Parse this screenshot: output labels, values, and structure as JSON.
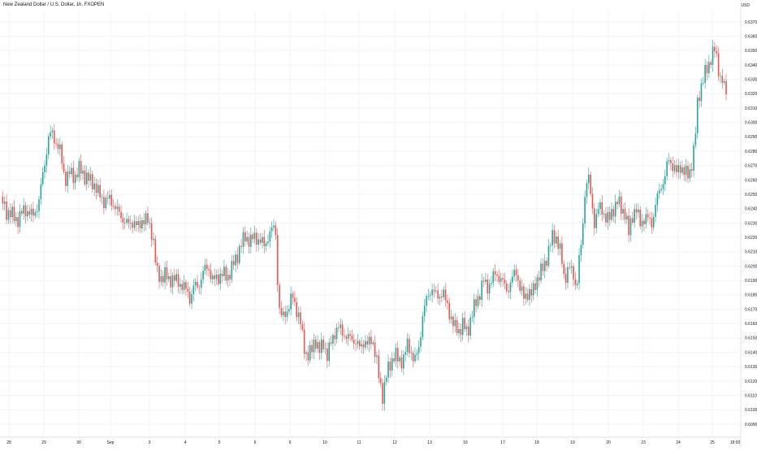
{
  "header": {
    "symbol_title": "New Zealand Dollar / U.S. Dollar, 1h, FXOPEN"
  },
  "price_axis": {
    "currency": "USD"
  },
  "colors": {
    "up": "#26a69a",
    "down": "#ef5350",
    "grid": "#f0f3fa",
    "text": "#131722",
    "axis_line": "#e0e3eb"
  },
  "chart_data": {
    "type": "candlestick",
    "title": "New Zealand Dollar / U.S. Dollar, 1h, FXOPEN",
    "currency": "USD",
    "ylim": [
      0.609,
      0.6375
    ],
    "y_ticks": [
      "0.6370",
      "0.6360",
      "0.6350",
      "0.6340",
      "0.6330",
      "0.6320",
      "0.6310",
      "0.6300",
      "0.6290",
      "0.6280",
      "0.6270",
      "0.6260",
      "0.6250",
      "0.6240",
      "0.6230",
      "0.6220",
      "0.6210",
      "0.6200",
      "0.6190",
      "0.6180",
      "0.6170",
      "0.6160",
      "0.6150",
      "0.6140",
      "0.6130",
      "0.6120",
      "0.6110",
      "0.6100",
      "0.6090"
    ],
    "x_ticks": [
      "28",
      "29",
      "30",
      "Sep",
      "3",
      "4",
      "5",
      "6",
      "9",
      "10",
      "11",
      "12",
      "13",
      "16",
      "17",
      "18",
      "19",
      "20",
      "23",
      "24",
      "25",
      "18:00"
    ],
    "grid": true,
    "series": {
      "anchors": [
        [
          0,
          0.6243
        ],
        [
          3,
          0.6245
        ],
        [
          8,
          0.6238
        ],
        [
          14,
          0.6236
        ],
        [
          22,
          0.6232
        ],
        [
          30,
          0.624
        ],
        [
          40,
          0.6235
        ],
        [
          45,
          0.624
        ],
        [
          48,
          0.6245
        ],
        [
          52,
          0.6262
        ],
        [
          56,
          0.6275
        ],
        [
          60,
          0.629
        ],
        [
          64,
          0.6293
        ],
        [
          68,
          0.6287
        ],
        [
          74,
          0.628
        ],
        [
          80,
          0.626
        ],
        [
          86,
          0.6265
        ],
        [
          92,
          0.6262
        ],
        [
          98,
          0.6268
        ],
        [
          104,
          0.6263
        ],
        [
          110,
          0.626
        ],
        [
          116,
          0.6257
        ],
        [
          122,
          0.625
        ],
        [
          128,
          0.6245
        ],
        [
          134,
          0.6247
        ],
        [
          140,
          0.6243
        ],
        [
          146,
          0.6237
        ],
        [
          152,
          0.6232
        ],
        [
          158,
          0.6229
        ],
        [
          164,
          0.6231
        ],
        [
          170,
          0.6227
        ],
        [
          176,
          0.6233
        ],
        [
          182,
          0.6231
        ],
        [
          188,
          0.6222
        ],
        [
          193,
          0.6195
        ],
        [
          198,
          0.6192
        ],
        [
          203,
          0.6194
        ],
        [
          208,
          0.619
        ],
        [
          213,
          0.6192
        ],
        [
          218,
          0.6189
        ],
        [
          224,
          0.6187
        ],
        [
          230,
          0.6183
        ],
        [
          234,
          0.6177
        ],
        [
          239,
          0.6187
        ],
        [
          244,
          0.6185
        ],
        [
          250,
          0.6196
        ],
        [
          256,
          0.62
        ],
        [
          262,
          0.619
        ],
        [
          268,
          0.6192
        ],
        [
          274,
          0.6195
        ],
        [
          280,
          0.6192
        ],
        [
          286,
          0.62
        ],
        [
          291,
          0.6205
        ],
        [
          296,
          0.6215
        ],
        [
          302,
          0.622
        ],
        [
          308,
          0.6218
        ],
        [
          314,
          0.622
        ],
        [
          320,
          0.6218
        ],
        [
          326,
          0.6214
        ],
        [
          331,
          0.6222
        ],
        [
          336,
          0.6226
        ],
        [
          339,
          0.6229
        ],
        [
          342,
          0.6186
        ],
        [
          345,
          0.6163
        ],
        [
          350,
          0.6167
        ],
        [
          355,
          0.617
        ],
        [
          360,
          0.618
        ],
        [
          365,
          0.617
        ],
        [
          370,
          0.616
        ],
        [
          374,
          0.6145
        ],
        [
          378,
          0.6137
        ],
        [
          383,
          0.614
        ],
        [
          388,
          0.615
        ],
        [
          393,
          0.614
        ],
        [
          398,
          0.6147
        ],
        [
          403,
          0.6137
        ],
        [
          408,
          0.6148
        ],
        [
          413,
          0.6155
        ],
        [
          418,
          0.6157
        ],
        [
          423,
          0.6153
        ],
        [
          428,
          0.615
        ],
        [
          433,
          0.615
        ],
        [
          438,
          0.6147
        ],
        [
          443,
          0.6143
        ],
        [
          448,
          0.6148
        ],
        [
          453,
          0.6145
        ],
        [
          458,
          0.615
        ],
        [
          463,
          0.6137
        ],
        [
          467,
          0.612
        ],
        [
          471,
          0.611
        ],
        [
          476,
          0.6125
        ],
        [
          481,
          0.6132
        ],
        [
          486,
          0.614
        ],
        [
          491,
          0.6133
        ],
        [
          496,
          0.6135
        ],
        [
          501,
          0.6145
        ],
        [
          506,
          0.614
        ],
        [
          511,
          0.6135
        ],
        [
          516,
          0.6143
        ],
        [
          520,
          0.6165
        ],
        [
          524,
          0.6175
        ],
        [
          528,
          0.618
        ],
        [
          532,
          0.6185
        ],
        [
          536,
          0.618
        ],
        [
          540,
          0.6178
        ],
        [
          545,
          0.6183
        ],
        [
          550,
          0.6173
        ],
        [
          555,
          0.6165
        ],
        [
          560,
          0.6157
        ],
        [
          565,
          0.6155
        ],
        [
          570,
          0.616
        ],
        [
          575,
          0.6153
        ],
        [
          580,
          0.6165
        ],
        [
          585,
          0.6173
        ],
        [
          590,
          0.618
        ],
        [
          595,
          0.619
        ],
        [
          600,
          0.6185
        ],
        [
          605,
          0.619
        ],
        [
          610,
          0.6195
        ],
        [
          615,
          0.6192
        ],
        [
          620,
          0.6188
        ],
        [
          625,
          0.6183
        ],
        [
          630,
          0.619
        ],
        [
          635,
          0.6198
        ],
        [
          640,
          0.6185
        ],
        [
          645,
          0.6178
        ],
        [
          650,
          0.6182
        ],
        [
          655,
          0.618
        ],
        [
          660,
          0.619
        ],
        [
          665,
          0.6195
        ],
        [
          670,
          0.62
        ],
        [
          675,
          0.621
        ],
        [
          680,
          0.622
        ],
        [
          685,
          0.622
        ],
        [
          690,
          0.621
        ],
        [
          695,
          0.619
        ],
        [
          700,
          0.62
        ],
        [
          705,
          0.6195
        ],
        [
          710,
          0.6185
        ],
        [
          713,
          0.6205
        ],
        [
          716,
          0.6215
        ],
        [
          720,
          0.625
        ],
        [
          724,
          0.6265
        ],
        [
          728,
          0.6245
        ],
        [
          732,
          0.623
        ],
        [
          736,
          0.624
        ],
        [
          740,
          0.624
        ],
        [
          745,
          0.6235
        ],
        [
          750,
          0.6232
        ],
        [
          755,
          0.624
        ],
        [
          760,
          0.6245
        ],
        [
          765,
          0.624
        ],
        [
          770,
          0.6237
        ],
        [
          774,
          0.6222
        ],
        [
          778,
          0.6235
        ],
        [
          783,
          0.624
        ],
        [
          788,
          0.623
        ],
        [
          793,
          0.6233
        ],
        [
          798,
          0.6233
        ],
        [
          803,
          0.623
        ],
        [
          808,
          0.6245
        ],
        [
          813,
          0.6255
        ],
        [
          818,
          0.626
        ],
        [
          823,
          0.6275
        ],
        [
          828,
          0.627
        ],
        [
          833,
          0.6265
        ],
        [
          838,
          0.627
        ],
        [
          843,
          0.6265
        ],
        [
          848,
          0.6263
        ],
        [
          853,
          0.6275
        ],
        [
          856,
          0.629
        ],
        [
          859,
          0.6315
        ],
        [
          863,
          0.6325
        ],
        [
          867,
          0.6333
        ],
        [
          871,
          0.6337
        ],
        [
          875,
          0.6345
        ],
        [
          879,
          0.6352
        ],
        [
          882,
          0.6345
        ],
        [
          885,
          0.6335
        ],
        [
          889,
          0.633
        ],
        [
          893,
          0.6322
        ],
        [
          896,
          0.6315
        ]
      ]
    }
  }
}
